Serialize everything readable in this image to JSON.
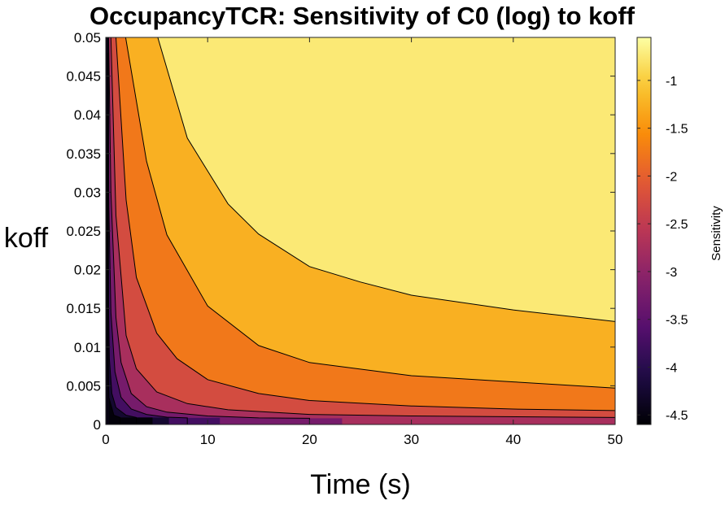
{
  "chart_data": {
    "type": "contour",
    "title": "OccupancyTCR: Sensitivity of C0 (log) to koff",
    "xlabel": "Time (s)",
    "ylabel": "koff",
    "colorbar_label": "Sensitivity",
    "xlim": [
      0,
      50
    ],
    "ylim": [
      0,
      0.05
    ],
    "clim": [
      -4.6,
      -0.55
    ],
    "x_ticks": [
      0,
      10,
      20,
      30,
      40,
      50
    ],
    "x_tick_labels": [
      "0",
      "10",
      "20",
      "30",
      "40",
      "50"
    ],
    "y_ticks": [
      0,
      0.005,
      0.01,
      0.015,
      0.02,
      0.025,
      0.03,
      0.035,
      0.04,
      0.045,
      0.05
    ],
    "y_tick_labels": [
      "0",
      "0.005",
      "0.01",
      "0.015",
      "0.02",
      "0.025",
      "0.03",
      "0.035",
      "0.04",
      "0.045",
      "0.05"
    ],
    "colorbar_ticks": [
      -4.5,
      -4,
      -3.5,
      -3,
      -2.5,
      -2,
      -1.5,
      -1
    ],
    "colorbar_tick_labels": [
      "-4.5",
      "-4",
      "-3.5",
      "-3",
      "-2.5",
      "-2",
      "-1.5",
      "-1"
    ],
    "colormap": "inferno",
    "contour_levels": [
      -4.5,
      -4.0,
      -3.5,
      -3.0,
      -2.5,
      -2.0,
      -1.5,
      -1.0
    ],
    "contour_lines_color": "#000000",
    "contour_paths": [
      {
        "level": -1.0,
        "points": [
          [
            5.1,
            0.05
          ],
          [
            8,
            0.037
          ],
          [
            12,
            0.0285
          ],
          [
            15,
            0.0246
          ],
          [
            20,
            0.0204
          ],
          [
            25,
            0.0184
          ],
          [
            30,
            0.0167
          ],
          [
            40,
            0.0148
          ],
          [
            50,
            0.0133
          ]
        ]
      },
      {
        "level": -1.5,
        "points": [
          [
            1.95,
            0.05
          ],
          [
            4,
            0.034
          ],
          [
            6,
            0.0245
          ],
          [
            10,
            0.0153
          ],
          [
            15,
            0.0102
          ],
          [
            20,
            0.008
          ],
          [
            30,
            0.0063
          ],
          [
            40,
            0.0055
          ],
          [
            50,
            0.0047
          ]
        ]
      },
      {
        "level": -2.0,
        "points": [
          [
            1.0,
            0.05
          ],
          [
            2,
            0.029
          ],
          [
            3,
            0.019
          ],
          [
            5,
            0.0118
          ],
          [
            7,
            0.0085
          ],
          [
            10,
            0.0058
          ],
          [
            15,
            0.004
          ],
          [
            20,
            0.0031
          ],
          [
            30,
            0.0024
          ],
          [
            40,
            0.002
          ],
          [
            50,
            0.0018
          ]
        ]
      },
      {
        "level": -2.5,
        "points": [
          [
            0.5,
            0.05
          ],
          [
            1,
            0.027
          ],
          [
            2,
            0.0115
          ],
          [
            3,
            0.0072
          ],
          [
            5,
            0.0042
          ],
          [
            8,
            0.0027
          ],
          [
            12,
            0.0019
          ],
          [
            20,
            0.0013
          ],
          [
            30,
            0.0011
          ],
          [
            50,
            0.0009
          ]
        ]
      },
      {
        "level": -3.0,
        "points": [
          [
            0.28,
            0.05
          ],
          [
            0.5,
            0.03
          ],
          [
            1,
            0.0138
          ],
          [
            1.5,
            0.008
          ],
          [
            2.5,
            0.004
          ],
          [
            4,
            0.0023
          ],
          [
            6,
            0.0016
          ],
          [
            10,
            0.0011
          ],
          [
            15,
            0.00085
          ],
          [
            20,
            0.0008
          ]
        ]
      },
      {
        "level": -3.5,
        "points": [
          [
            0.18,
            0.048
          ],
          [
            0.3,
            0.028
          ],
          [
            0.5,
            0.0145
          ],
          [
            0.9,
            0.0068
          ],
          [
            1.5,
            0.0035
          ],
          [
            2.5,
            0.002
          ],
          [
            4,
            0.0013
          ],
          [
            6,
            0.00095
          ],
          [
            8,
            0.00085
          ]
        ]
      },
      {
        "level": -4.0,
        "points": [
          [
            0.13,
            0.04
          ],
          [
            0.2,
            0.022
          ],
          [
            0.35,
            0.0085
          ],
          [
            0.6,
            0.004
          ],
          [
            1,
            0.0022
          ],
          [
            2,
            0.0012
          ],
          [
            3,
            0.0009
          ]
        ]
      },
      {
        "level": -4.5,
        "points": [
          [
            0.08,
            0.035
          ],
          [
            0.15,
            0.01
          ],
          [
            0.3,
            0.0035
          ],
          [
            0.8,
            0.0012
          ],
          [
            1.4,
            0.0009
          ]
        ]
      }
    ]
  }
}
